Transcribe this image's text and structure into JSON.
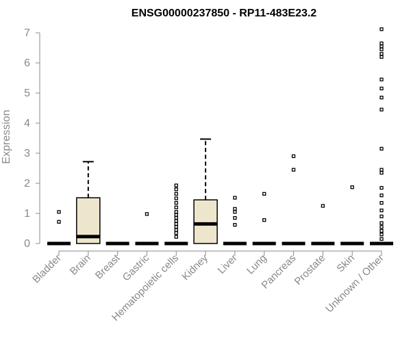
{
  "chart_data": {
    "type": "boxplot",
    "title": "ENSG00000237850 - RP11-483E23.2",
    "ylabel": "Expression",
    "ylim": [
      0,
      7
    ],
    "yticks": [
      "0",
      "1",
      "2",
      "3",
      "4",
      "5",
      "6",
      "7"
    ],
    "box_fill": "#ede6cc",
    "categories": [
      "Bladder",
      "Brain",
      "Breast",
      "Gastric",
      "Hematopoietic cells",
      "Kidney",
      "Liver",
      "Lung",
      "Pancreas",
      "Prostate",
      "Skin",
      "Unknown / Other"
    ],
    "groups": [
      {
        "name": "Bladder",
        "q1": 0,
        "median": 0,
        "q3": 0,
        "whisker_low": 0,
        "whisker_high": 0,
        "outliers": [
          0.72,
          1.05
        ]
      },
      {
        "name": "Brain",
        "q1": 0,
        "median": 0.23,
        "q3": 1.52,
        "whisker_low": 0,
        "whisker_high": 2.72,
        "outliers": []
      },
      {
        "name": "Breast",
        "q1": 0,
        "median": 0,
        "q3": 0,
        "whisker_low": 0,
        "whisker_high": 0,
        "outliers": []
      },
      {
        "name": "Gastric",
        "q1": 0,
        "median": 0,
        "q3": 0,
        "whisker_low": 0,
        "whisker_high": 0,
        "outliers": [
          0.98
        ]
      },
      {
        "name": "Hematopoietic cells",
        "q1": 0,
        "median": 0,
        "q3": 0,
        "whisker_low": 0,
        "whisker_high": 0,
        "outliers": [
          0.22,
          0.35,
          0.45,
          0.55,
          0.65,
          0.75,
          0.85,
          0.95,
          1.05,
          1.2,
          1.35,
          1.5,
          1.65,
          1.8,
          1.93
        ]
      },
      {
        "name": "Kidney",
        "q1": 0,
        "median": 0.65,
        "q3": 1.45,
        "whisker_low": 0,
        "whisker_high": 3.47,
        "outliers": []
      },
      {
        "name": "Liver",
        "q1": 0,
        "median": 0,
        "q3": 0,
        "whisker_low": 0,
        "whisker_high": 0,
        "outliers": [
          0.62,
          0.85,
          1.05,
          1.15,
          1.52
        ]
      },
      {
        "name": "Lung",
        "q1": 0,
        "median": 0,
        "q3": 0,
        "whisker_low": 0,
        "whisker_high": 0,
        "outliers": [
          0.78,
          1.65
        ]
      },
      {
        "name": "Pancreas",
        "q1": 0,
        "median": 0,
        "q3": 0,
        "whisker_low": 0,
        "whisker_high": 0,
        "outliers": [
          2.45,
          2.9
        ]
      },
      {
        "name": "Prostate",
        "q1": 0,
        "median": 0,
        "q3": 0,
        "whisker_low": 0,
        "whisker_high": 0,
        "outliers": [
          1.25
        ]
      },
      {
        "name": "Skin",
        "q1": 0,
        "median": 0,
        "q3": 0,
        "whisker_low": 0,
        "whisker_high": 0,
        "outliers": [
          1.87
        ]
      },
      {
        "name": "Unknown / Other",
        "q1": 0,
        "median": 0,
        "q3": 0,
        "whisker_low": 0,
        "whisker_high": 0,
        "outliers": [
          0.15,
          0.3,
          0.42,
          0.55,
          0.68,
          0.9,
          1.1,
          1.35,
          1.6,
          1.85,
          2.35,
          2.45,
          3.15,
          4.45,
          4.85,
          5.15,
          5.45,
          6.2,
          6.3,
          6.45,
          6.55,
          6.65,
          7.12
        ]
      }
    ]
  }
}
